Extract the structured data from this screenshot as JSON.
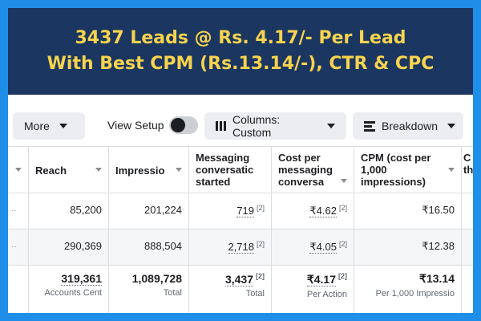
{
  "banner": {
    "line1": "3437 Leads @ Rs. 4.17/- Per Lead",
    "line2": "With Best CPM (Rs.13.14/-), CTR & CPC"
  },
  "toolbar": {
    "more_label": "More",
    "view_setup_label": "View Setup",
    "view_setup_on": false,
    "columns_label": "Columns: Custom",
    "breakdown_label": "Breakdown"
  },
  "table": {
    "headers": {
      "reach": "Reach",
      "impressions": "Impressio",
      "messaging": "Messaging conversatic started",
      "cost_per": "Cost per messaging conversa",
      "cpm": "CPM (cost per 1,000 impressions)",
      "partial": "C th"
    },
    "rows": [
      {
        "reach": "85,200",
        "impressions": "201,224",
        "messaging": "719",
        "messaging_ref": "[2]",
        "cost": "₹4.62",
        "cost_ref": "[2]",
        "cpm": "₹16.50"
      },
      {
        "reach": "290,369",
        "impressions": "888,504",
        "messaging": "2,718",
        "messaging_ref": "[2]",
        "cost": "₹4.05",
        "cost_ref": "[2]",
        "cpm": "₹12.38"
      }
    ],
    "totals": {
      "reach": "319,361",
      "reach_sub": "Accounts Cent",
      "impressions": "1,089,728",
      "impressions_sub": "Total",
      "messaging": "3,437",
      "messaging_ref": "[2]",
      "messaging_sub": "Total",
      "cost": "₹4.17",
      "cost_ref": "[2]",
      "cost_sub": "Per Action",
      "cpm": "₹13.14",
      "cpm_sub": "Per 1,000 Impressio"
    }
  }
}
